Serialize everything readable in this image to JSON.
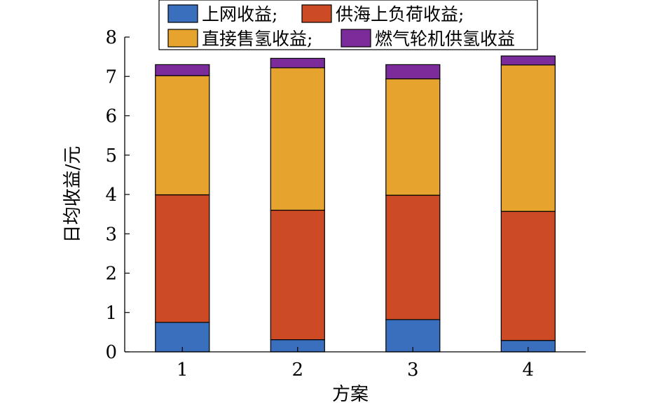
{
  "chart_data": {
    "type": "bar",
    "stacked": true,
    "title": "",
    "xlabel": "方案",
    "ylabel": "日均收益/元",
    "categories": [
      "1",
      "2",
      "3",
      "4"
    ],
    "ylim": [
      0,
      8
    ],
    "yticks": [
      "0",
      "1",
      "2",
      "3",
      "4",
      "5",
      "6",
      "7",
      "8"
    ],
    "grid": false,
    "legend_position": "top",
    "series": [
      {
        "name": "上网收益;",
        "color": "#3a6fbd",
        "values": [
          0.75,
          0.31,
          0.82,
          0.29
        ]
      },
      {
        "name": "供海上负荷收益;",
        "color": "#cc4a24",
        "values": [
          3.24,
          3.29,
          3.16,
          3.28
        ]
      },
      {
        "name": "直接售氢收益;",
        "color": "#e6a32e",
        "values": [
          3.03,
          3.62,
          2.96,
          3.72
        ]
      },
      {
        "name": "燃气轮机供氢收益",
        "color": "#7c2c9a",
        "values": [
          0.28,
          0.24,
          0.36,
          0.23
        ]
      }
    ]
  }
}
